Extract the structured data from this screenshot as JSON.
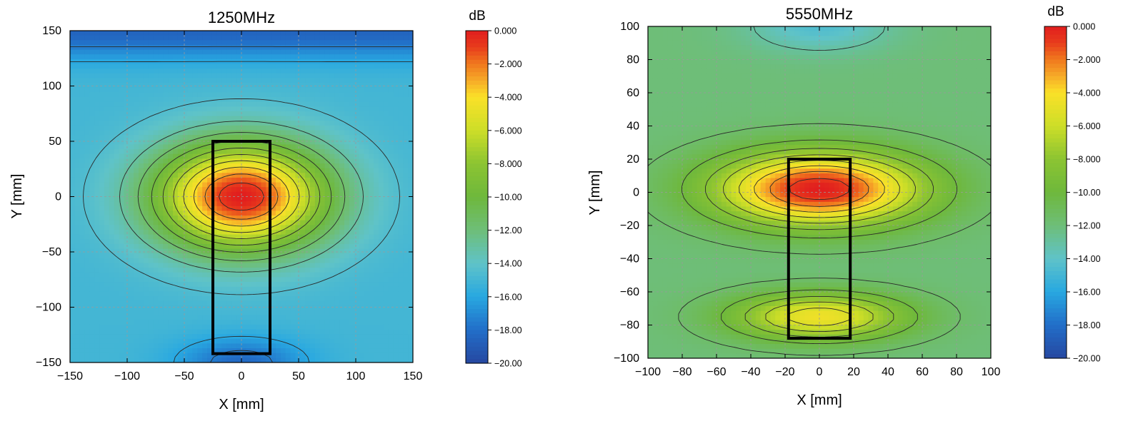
{
  "chart_data": [
    {
      "type": "heatmap",
      "title": "1250MHz",
      "xlabel": "X [mm]",
      "ylabel": "Y [mm]",
      "xlim": [
        -150,
        150
      ],
      "ylim": [
        -150,
        150
      ],
      "xticks": [
        "−150",
        "−100",
        "−50",
        "0",
        "50",
        "100",
        "150"
      ],
      "yticks": [
        "150",
        "100",
        "50",
        "0",
        "−50",
        "−100",
        "−150"
      ],
      "colorbar": {
        "unit": "dB",
        "range": [
          -20,
          0
        ],
        "ticks": [
          "0.000",
          "−2.000",
          "−4.000",
          "−6.000",
          "−8.000",
          "−10.00",
          "−12.00",
          "−14.00",
          "−16.00",
          "−18.00",
          "−20.00"
        ]
      },
      "field_model": {
        "peak_db": 0,
        "peak_x": 0,
        "peak_y": 0,
        "sx": 75,
        "sy": 48,
        "edge_db": -15
      },
      "outline_rect": {
        "x": [
          -25,
          25
        ],
        "y": [
          -142,
          50
        ]
      },
      "grid": true
    },
    {
      "type": "heatmap",
      "title": "5550MHz",
      "xlabel": "X [mm]",
      "ylabel": "Y [mm]",
      "xlim": [
        -100,
        100
      ],
      "ylim": [
        -100,
        100
      ],
      "xticks": [
        "−100",
        "−80",
        "−60",
        "−40",
        "−20",
        "0",
        "20",
        "40",
        "60",
        "80",
        "100"
      ],
      "yticks": [
        "100",
        "80",
        "60",
        "40",
        "20",
        "0",
        "−20",
        "−40",
        "−60",
        "−80",
        "−100"
      ],
      "colorbar": {
        "unit": "dB",
        "range": [
          -20,
          0
        ],
        "ticks": [
          "0.000",
          "−2.000",
          "−4.000",
          "−6.000",
          "−8.000",
          "−10.00",
          "−12.00",
          "−14.00",
          "−16.00",
          "−18.00",
          "−20.00"
        ]
      },
      "field_model": {
        "peak_db": 0,
        "peak_x": 0,
        "peak_y": 2,
        "sx": 60,
        "sy": 22,
        "secondary_db": -4.5,
        "secondary_y": -75,
        "secondary_sx": 50,
        "secondary_sy": 14,
        "edge_db": -12
      },
      "outline_rect": {
        "x": [
          -18,
          18
        ],
        "y": [
          -88,
          20
        ]
      },
      "grid": true
    }
  ]
}
